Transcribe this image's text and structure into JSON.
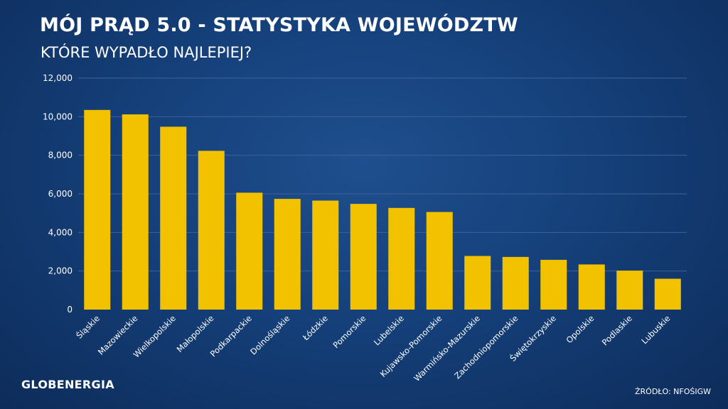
{
  "header": {
    "title": "MÓJ PRĄD 5.0 - STATYSTYKA WOJEWÓDZTW",
    "subtitle": "KTÓRE WYPADŁO NAJLEPIEJ?"
  },
  "footer": {
    "logo": "GLOBENERGIA",
    "source": "ŹRÓDŁO: NFOŚIGW"
  },
  "colors": {
    "background": "#15407a",
    "bar": "#f2c200",
    "gridline": "#3d6299"
  },
  "chart_data": {
    "type": "bar",
    "categories": [
      "Śląskie",
      "Mazowieckie",
      "Wielkopolskie",
      "Małopolskie",
      "Podkarpackie",
      "Dolnośląskie",
      "Łódzkie",
      "Pomorskie",
      "Lubelskie",
      "Kujawsko-Pomorskie",
      "Warmińsko-Mazurskie",
      "Zachodniopomorskie",
      "Świętokrzyskie",
      "Opolskie",
      "Podlaskie",
      "Lubuskie"
    ],
    "values": [
      10350,
      10120,
      9480,
      8230,
      6060,
      5740,
      5650,
      5480,
      5270,
      5060,
      2780,
      2730,
      2580,
      2340,
      2020,
      1600
    ],
    "ylim": [
      0,
      12000
    ],
    "yticks": [
      "0",
      "2,000",
      "4,000",
      "6,000",
      "8,000",
      "10,000",
      "12,000"
    ],
    "ytick_values": [
      0,
      2000,
      4000,
      6000,
      8000,
      10000,
      12000
    ],
    "grid": true,
    "legend": "none"
  }
}
